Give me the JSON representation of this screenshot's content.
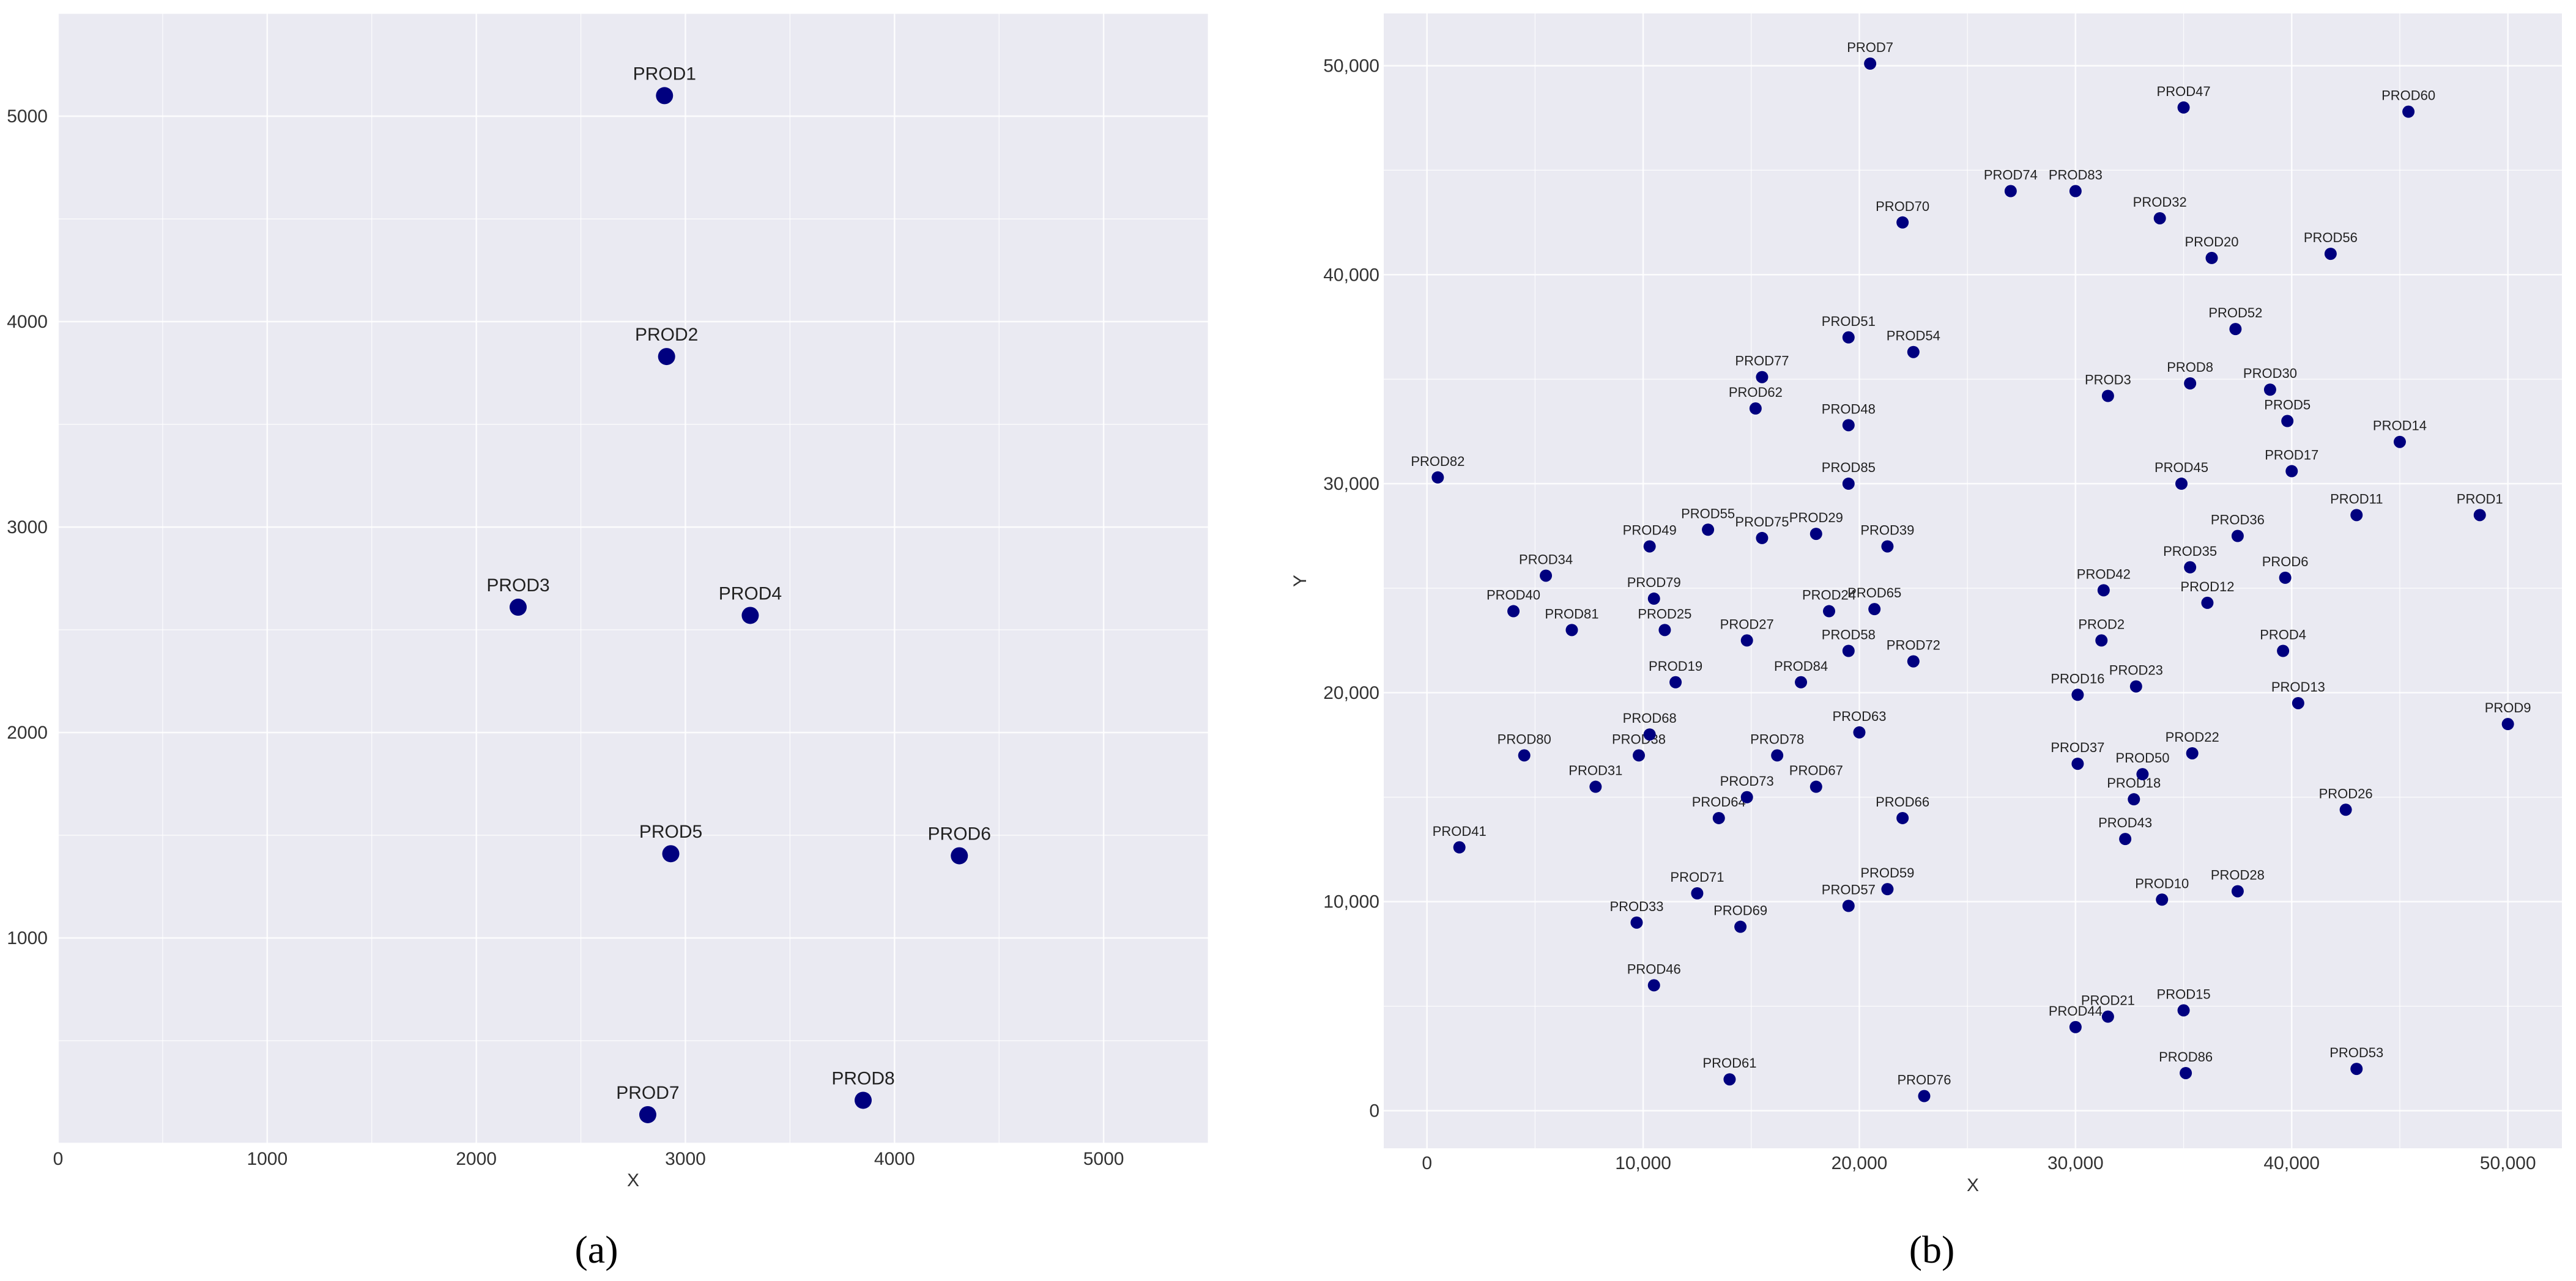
{
  "chart_data": [
    {
      "type": "scatter",
      "caption": "(a)",
      "xlabel": "X",
      "ylabel": "",
      "xlim": [
        0,
        5500
      ],
      "ylim": [
        0,
        5500
      ],
      "xticks": [
        "0",
        "1000",
        "2000",
        "3000",
        "4000",
        "5000"
      ],
      "yticks": [
        "1000",
        "2000",
        "3000",
        "4000",
        "5000"
      ],
      "xtick_values": [
        0,
        1000,
        2000,
        3000,
        4000,
        5000
      ],
      "ytick_values": [
        1000,
        2000,
        3000,
        4000,
        5000
      ],
      "grid": true,
      "point_color": "#00007f",
      "background_color": "#eaeaf2",
      "points": [
        {
          "label": "PROD1",
          "x": 2900,
          "y": 5100
        },
        {
          "label": "PROD2",
          "x": 2910,
          "y": 3830
        },
        {
          "label": "PROD3",
          "x": 2200,
          "y": 2610
        },
        {
          "label": "PROD4",
          "x": 3310,
          "y": 2570
        },
        {
          "label": "PROD5",
          "x": 2930,
          "y": 1410
        },
        {
          "label": "PROD6",
          "x": 4310,
          "y": 1400
        },
        {
          "label": "PROD7",
          "x": 2820,
          "y": 140
        },
        {
          "label": "PROD8",
          "x": 3850,
          "y": 210
        }
      ]
    },
    {
      "type": "scatter",
      "caption": "(b)",
      "xlabel": "X",
      "ylabel": "Y",
      "xlim": [
        -2000,
        52500
      ],
      "ylim": [
        -1800,
        52500
      ],
      "xticks": [
        "0",
        "10,000",
        "20,000",
        "30,000",
        "40,000",
        "50,000"
      ],
      "yticks": [
        "0",
        "10,000",
        "20,000",
        "30,000",
        "40,000",
        "50,000"
      ],
      "xtick_values": [
        0,
        10000,
        20000,
        30000,
        40000,
        50000
      ],
      "ytick_values": [
        0,
        10000,
        20000,
        30000,
        40000,
        50000
      ],
      "grid": true,
      "point_color": "#00007f",
      "background_color": "#eaeaf2",
      "points": [
        {
          "label": "PROD1",
          "x": 48700,
          "y": 28500
        },
        {
          "label": "PROD2",
          "x": 31200,
          "y": 22500
        },
        {
          "label": "PROD3",
          "x": 31500,
          "y": 34200
        },
        {
          "label": "PROD4",
          "x": 39600,
          "y": 22000
        },
        {
          "label": "PROD5",
          "x": 39800,
          "y": 33000
        },
        {
          "label": "PROD6",
          "x": 39700,
          "y": 25500
        },
        {
          "label": "PROD7",
          "x": 20500,
          "y": 50100
        },
        {
          "label": "PROD8",
          "x": 35300,
          "y": 34800
        },
        {
          "label": "PROD9",
          "x": 50000,
          "y": 18500
        },
        {
          "label": "PROD10",
          "x": 34000,
          "y": 10100
        },
        {
          "label": "PROD11",
          "x": 43000,
          "y": 28500
        },
        {
          "label": "PROD12",
          "x": 36100,
          "y": 24300
        },
        {
          "label": "PROD13",
          "x": 40300,
          "y": 19500
        },
        {
          "label": "PROD14",
          "x": 45000,
          "y": 32000
        },
        {
          "label": "PROD15",
          "x": 35000,
          "y": 4800
        },
        {
          "label": "PROD16",
          "x": 30100,
          "y": 19900
        },
        {
          "label": "PROD17",
          "x": 40000,
          "y": 30600
        },
        {
          "label": "PROD18",
          "x": 32700,
          "y": 14900
        },
        {
          "label": "PROD19",
          "x": 11500,
          "y": 20500
        },
        {
          "label": "PROD20",
          "x": 36300,
          "y": 40800
        },
        {
          "label": "PROD21",
          "x": 31500,
          "y": 4500
        },
        {
          "label": "PROD22",
          "x": 35400,
          "y": 17100
        },
        {
          "label": "PROD23",
          "x": 32800,
          "y": 20300
        },
        {
          "label": "PROD24",
          "x": 18600,
          "y": 23900
        },
        {
          "label": "PROD25",
          "x": 11000,
          "y": 23000
        },
        {
          "label": "PROD26",
          "x": 42500,
          "y": 14400
        },
        {
          "label": "PROD27",
          "x": 14800,
          "y": 22500
        },
        {
          "label": "PROD28",
          "x": 37500,
          "y": 10500
        },
        {
          "label": "PROD29",
          "x": 18000,
          "y": 27600
        },
        {
          "label": "PROD30",
          "x": 39000,
          "y": 34500
        },
        {
          "label": "PROD31",
          "x": 7800,
          "y": 15500
        },
        {
          "label": "PROD32",
          "x": 33900,
          "y": 42700
        },
        {
          "label": "PROD33",
          "x": 9700,
          "y": 9000
        },
        {
          "label": "PROD34",
          "x": 5500,
          "y": 25600
        },
        {
          "label": "PROD35",
          "x": 35300,
          "y": 26000
        },
        {
          "label": "PROD36",
          "x": 37500,
          "y": 27500
        },
        {
          "label": "PROD37",
          "x": 30100,
          "y": 16600
        },
        {
          "label": "PROD38",
          "x": 9800,
          "y": 17000
        },
        {
          "label": "PROD39",
          "x": 21300,
          "y": 27000
        },
        {
          "label": "PROD40",
          "x": 4000,
          "y": 23900
        },
        {
          "label": "PROD41",
          "x": 1500,
          "y": 12600
        },
        {
          "label": "PROD42",
          "x": 31300,
          "y": 24900
        },
        {
          "label": "PROD43",
          "x": 32300,
          "y": 13000
        },
        {
          "label": "PROD44",
          "x": 30000,
          "y": 4000
        },
        {
          "label": "PROD45",
          "x": 34900,
          "y": 30000
        },
        {
          "label": "PROD46",
          "x": 10500,
          "y": 6000
        },
        {
          "label": "PROD47",
          "x": 35000,
          "y": 48000
        },
        {
          "label": "PROD48",
          "x": 19500,
          "y": 32800
        },
        {
          "label": "PROD49",
          "x": 10300,
          "y": 27000
        },
        {
          "label": "PROD50",
          "x": 33100,
          "y": 16100
        },
        {
          "label": "PROD51",
          "x": 19500,
          "y": 37000
        },
        {
          "label": "PROD52",
          "x": 37400,
          "y": 37400
        },
        {
          "label": "PROD53",
          "x": 43000,
          "y": 2000
        },
        {
          "label": "PROD54",
          "x": 22500,
          "y": 36300
        },
        {
          "label": "PROD55",
          "x": 13000,
          "y": 27800
        },
        {
          "label": "PROD56",
          "x": 41800,
          "y": 41000
        },
        {
          "label": "PROD57",
          "x": 19500,
          "y": 9800
        },
        {
          "label": "PROD58",
          "x": 19500,
          "y": 22000
        },
        {
          "label": "PROD59",
          "x": 21300,
          "y": 10600
        },
        {
          "label": "PROD60",
          "x": 45400,
          "y": 47800
        },
        {
          "label": "PROD61",
          "x": 14000,
          "y": 1500
        },
        {
          "label": "PROD62",
          "x": 15200,
          "y": 33600
        },
        {
          "label": "PROD63",
          "x": 20000,
          "y": 18100
        },
        {
          "label": "PROD64",
          "x": 13500,
          "y": 14000
        },
        {
          "label": "PROD65",
          "x": 20700,
          "y": 24000
        },
        {
          "label": "PROD66",
          "x": 22000,
          "y": 14000
        },
        {
          "label": "PROD67",
          "x": 18000,
          "y": 15500
        },
        {
          "label": "PROD68",
          "x": 10300,
          "y": 18000
        },
        {
          "label": "PROD69",
          "x": 14500,
          "y": 8800
        },
        {
          "label": "PROD70",
          "x": 22000,
          "y": 42500
        },
        {
          "label": "PROD71",
          "x": 12500,
          "y": 10400
        },
        {
          "label": "PROD72",
          "x": 22500,
          "y": 21500
        },
        {
          "label": "PROD73",
          "x": 14800,
          "y": 15000
        },
        {
          "label": "PROD74",
          "x": 27000,
          "y": 44000
        },
        {
          "label": "PROD75",
          "x": 15500,
          "y": 27400
        },
        {
          "label": "PROD76",
          "x": 23000,
          "y": 700
        },
        {
          "label": "PROD77",
          "x": 15500,
          "y": 35100
        },
        {
          "label": "PROD78",
          "x": 16200,
          "y": 17000
        },
        {
          "label": "PROD79",
          "x": 10500,
          "y": 24500
        },
        {
          "label": "PROD80",
          "x": 4500,
          "y": 17000
        },
        {
          "label": "PROD81",
          "x": 6700,
          "y": 23000
        },
        {
          "label": "PROD82",
          "x": 500,
          "y": 30300
        },
        {
          "label": "PROD83",
          "x": 30000,
          "y": 44000
        },
        {
          "label": "PROD84",
          "x": 17300,
          "y": 20500
        },
        {
          "label": "PROD85",
          "x": 19500,
          "y": 30000
        },
        {
          "label": "PROD86",
          "x": 35100,
          "y": 1800
        }
      ]
    }
  ]
}
